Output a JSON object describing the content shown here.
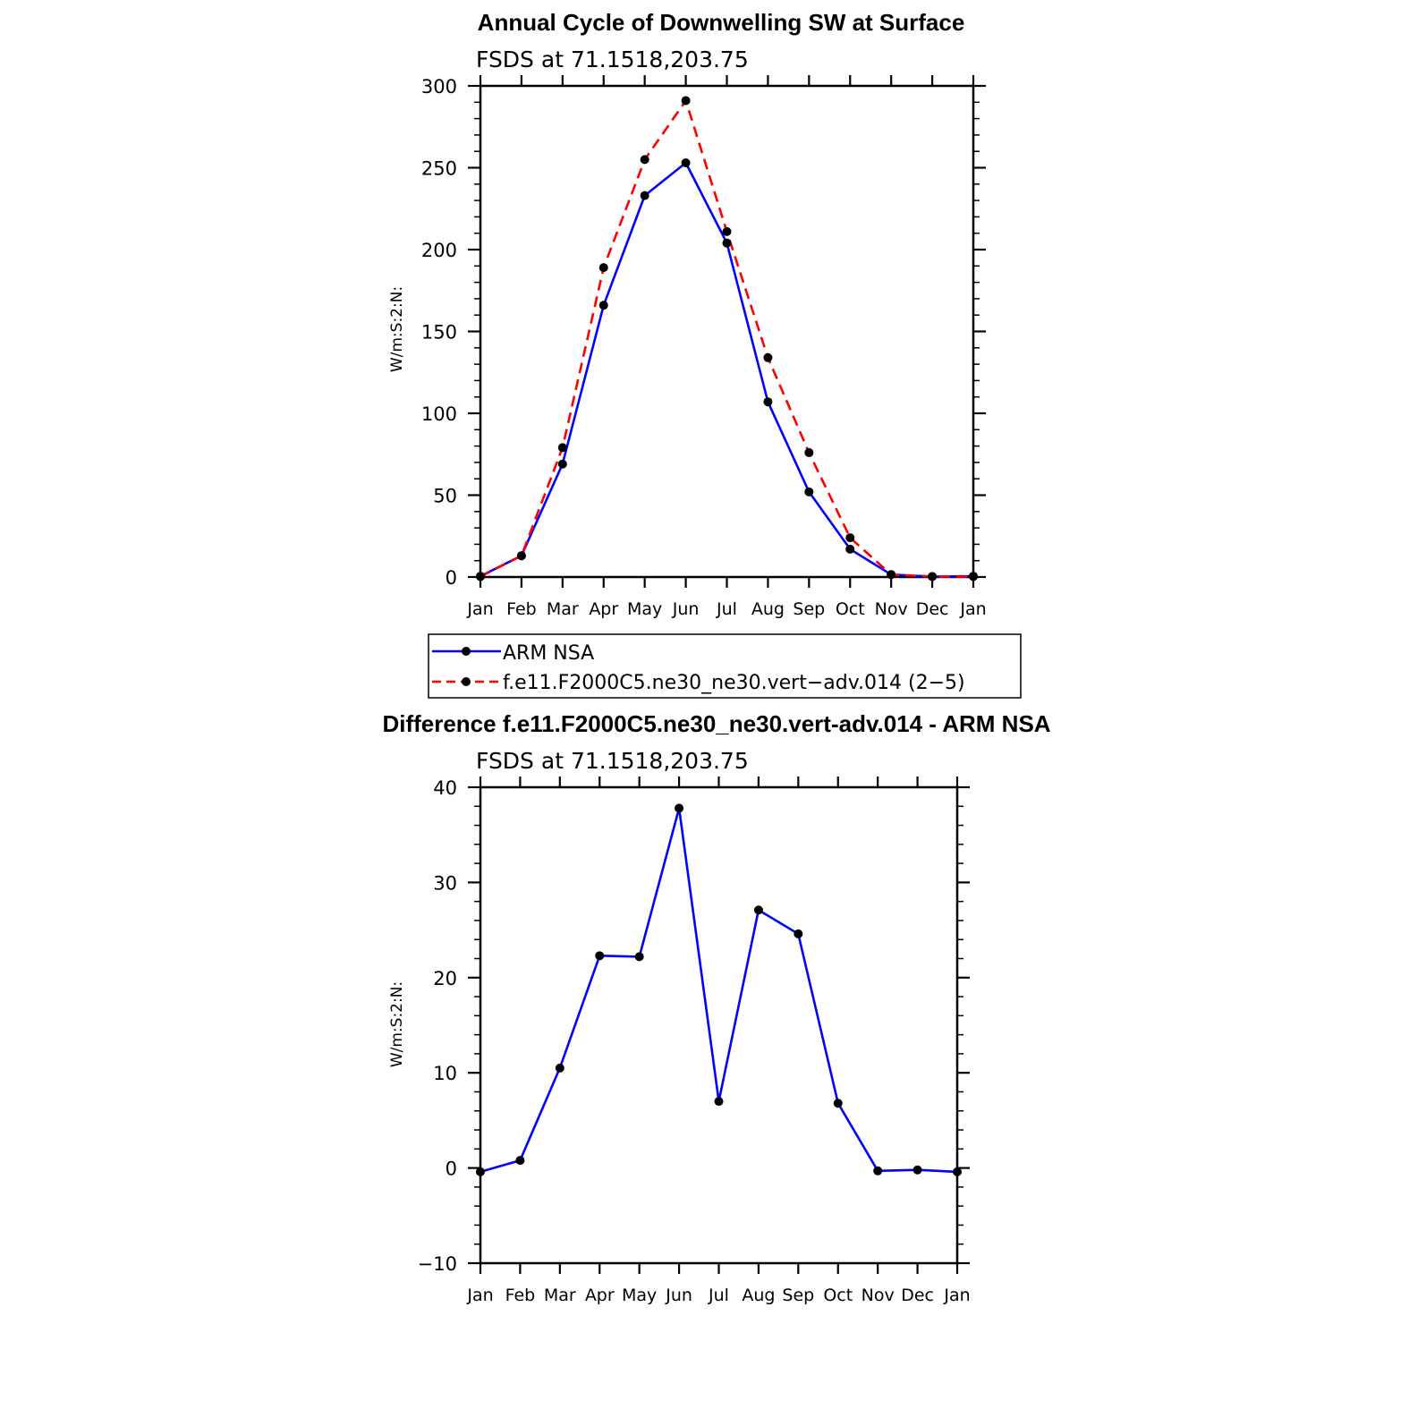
{
  "chart_data": [
    {
      "type": "line",
      "title": "Annual Cycle of Downwelling SW at Surface",
      "subtitle": "FSDS at 71.1518,203.75",
      "ylabel": "W/m:S:2:N:",
      "xlabel": "",
      "categories": [
        "Jan",
        "Feb",
        "Mar",
        "Apr",
        "May",
        "Jun",
        "Jul",
        "Aug",
        "Sep",
        "Oct",
        "Nov",
        "Dec",
        "Jan"
      ],
      "ylim": [
        0,
        300
      ],
      "yticks": [
        0,
        50,
        100,
        150,
        200,
        250,
        300
      ],
      "yticks_labels": [
        "0",
        "50",
        "100",
        "150",
        "200",
        "250",
        "300"
      ],
      "series": [
        {
          "name": "ARM NSA",
          "color": "#0000ff",
          "dash": "solid",
          "values": [
            0.5,
            13,
            69,
            166,
            233,
            253,
            204,
            107,
            52,
            17,
            1.5,
            0.3,
            0.5
          ]
        },
        {
          "name": "f.e11.F2000C5.ne30_ne30.vert−adv.014 (2−5)",
          "color": "#ff0000",
          "dash": "dashed",
          "values": [
            0.3,
            13,
            79,
            189,
            255,
            291,
            211,
            134,
            76,
            24,
            1.5,
            0.3,
            0.3
          ]
        }
      ],
      "legend": "below"
    },
    {
      "type": "line",
      "title": "Difference f.e11.F2000C5.ne30_ne30.vert-adv.014 - ARM NSA",
      "subtitle": "FSDS at 71.1518,203.75",
      "ylabel": "W/m:S:2:N:",
      "xlabel": "",
      "categories": [
        "Jan",
        "Feb",
        "Mar",
        "Apr",
        "May",
        "Jun",
        "Jul",
        "Aug",
        "Sep",
        "Oct",
        "Nov",
        "Dec",
        "Jan"
      ],
      "ylim": [
        -10,
        40
      ],
      "yticks": [
        -10,
        0,
        10,
        20,
        30,
        40
      ],
      "yticks_labels": [
        "−10",
        "0",
        "10",
        "20",
        "30",
        "40"
      ],
      "series": [
        {
          "color": "#0000ff",
          "dash": "solid",
          "values": [
            -0.4,
            0.8,
            10.5,
            22.3,
            22.2,
            37.8,
            7.0,
            27.1,
            24.6,
            6.8,
            -0.3,
            -0.2,
            -0.4
          ]
        }
      ]
    }
  ]
}
